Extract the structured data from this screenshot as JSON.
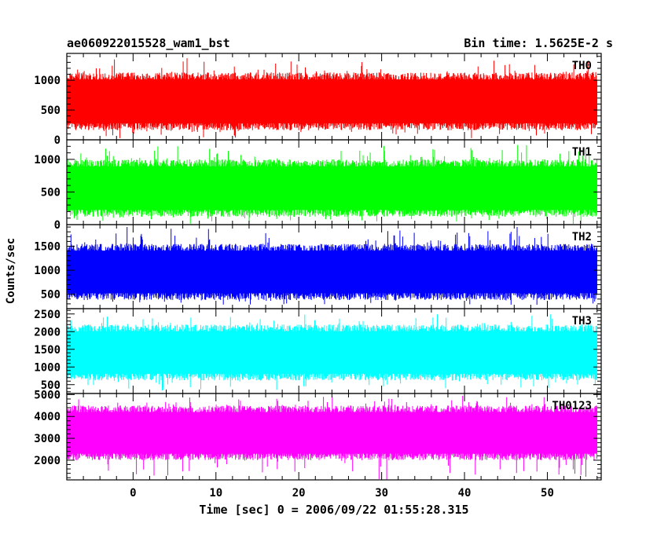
{
  "chart_data": {
    "type": "line",
    "title_left": "ae060922015528_wam1_bst",
    "title_right": "Bin time: 1.5625E-2 s",
    "xlabel": "Time [sec] 0 = 2006/09/22 01:55:28.315",
    "ylabel": "Counts/sec",
    "xlim": [
      -8,
      56.5
    ],
    "x_ticks": [
      0,
      10,
      20,
      30,
      40,
      50
    ],
    "x_tick_labels": [
      "0",
      "10",
      "20",
      "30",
      "40",
      "50"
    ],
    "data_x_range": [
      -7.9,
      56
    ],
    "panels": [
      {
        "name": "TH0",
        "color": "#ff0000",
        "ylim": [
          0,
          1450
        ],
        "y_ticks": [
          0,
          500,
          1000
        ],
        "y_tick_labels": [
          "0",
          "500",
          "1000"
        ],
        "typical_range": [
          160,
          1130
        ],
        "extreme_range": [
          0,
          1400
        ]
      },
      {
        "name": "TH1",
        "color": "#00ff00",
        "ylim": [
          0,
          1300
        ],
        "y_ticks": [
          0,
          500,
          1000
        ],
        "y_tick_labels": [
          "0",
          "500",
          "1000"
        ],
        "typical_range": [
          120,
          1000
        ],
        "extreme_range": [
          0,
          1260
        ]
      },
      {
        "name": "TH2",
        "color": "#0000ff",
        "ylim": [
          200,
          1950
        ],
        "y_ticks": [
          500,
          1000,
          1500
        ],
        "y_tick_labels": [
          "500",
          "1000",
          "1500"
        ],
        "typical_range": [
          380,
          1550
        ],
        "extreme_range": [
          250,
          1930
        ]
      },
      {
        "name": "TH3",
        "color": "#00ffff",
        "ylim": [
          250,
          2650
        ],
        "y_ticks": [
          500,
          1000,
          1500,
          2000,
          2500
        ],
        "y_tick_labels": [
          "500",
          "1000",
          "1500",
          "2000",
          "2500"
        ],
        "typical_range": [
          620,
          2200
        ],
        "extreme_range": [
          300,
          2550
        ]
      },
      {
        "name": "TH0123",
        "color": "#ff00ff",
        "ylim": [
          1100,
          5050
        ],
        "y_ticks": [
          2000,
          3000,
          4000,
          5000
        ],
        "y_tick_labels": [
          "2000",
          "3000",
          "4000",
          "5000"
        ],
        "typical_range": [
          2000,
          4500
        ],
        "extreme_range": [
          1100,
          5000
        ]
      }
    ]
  }
}
